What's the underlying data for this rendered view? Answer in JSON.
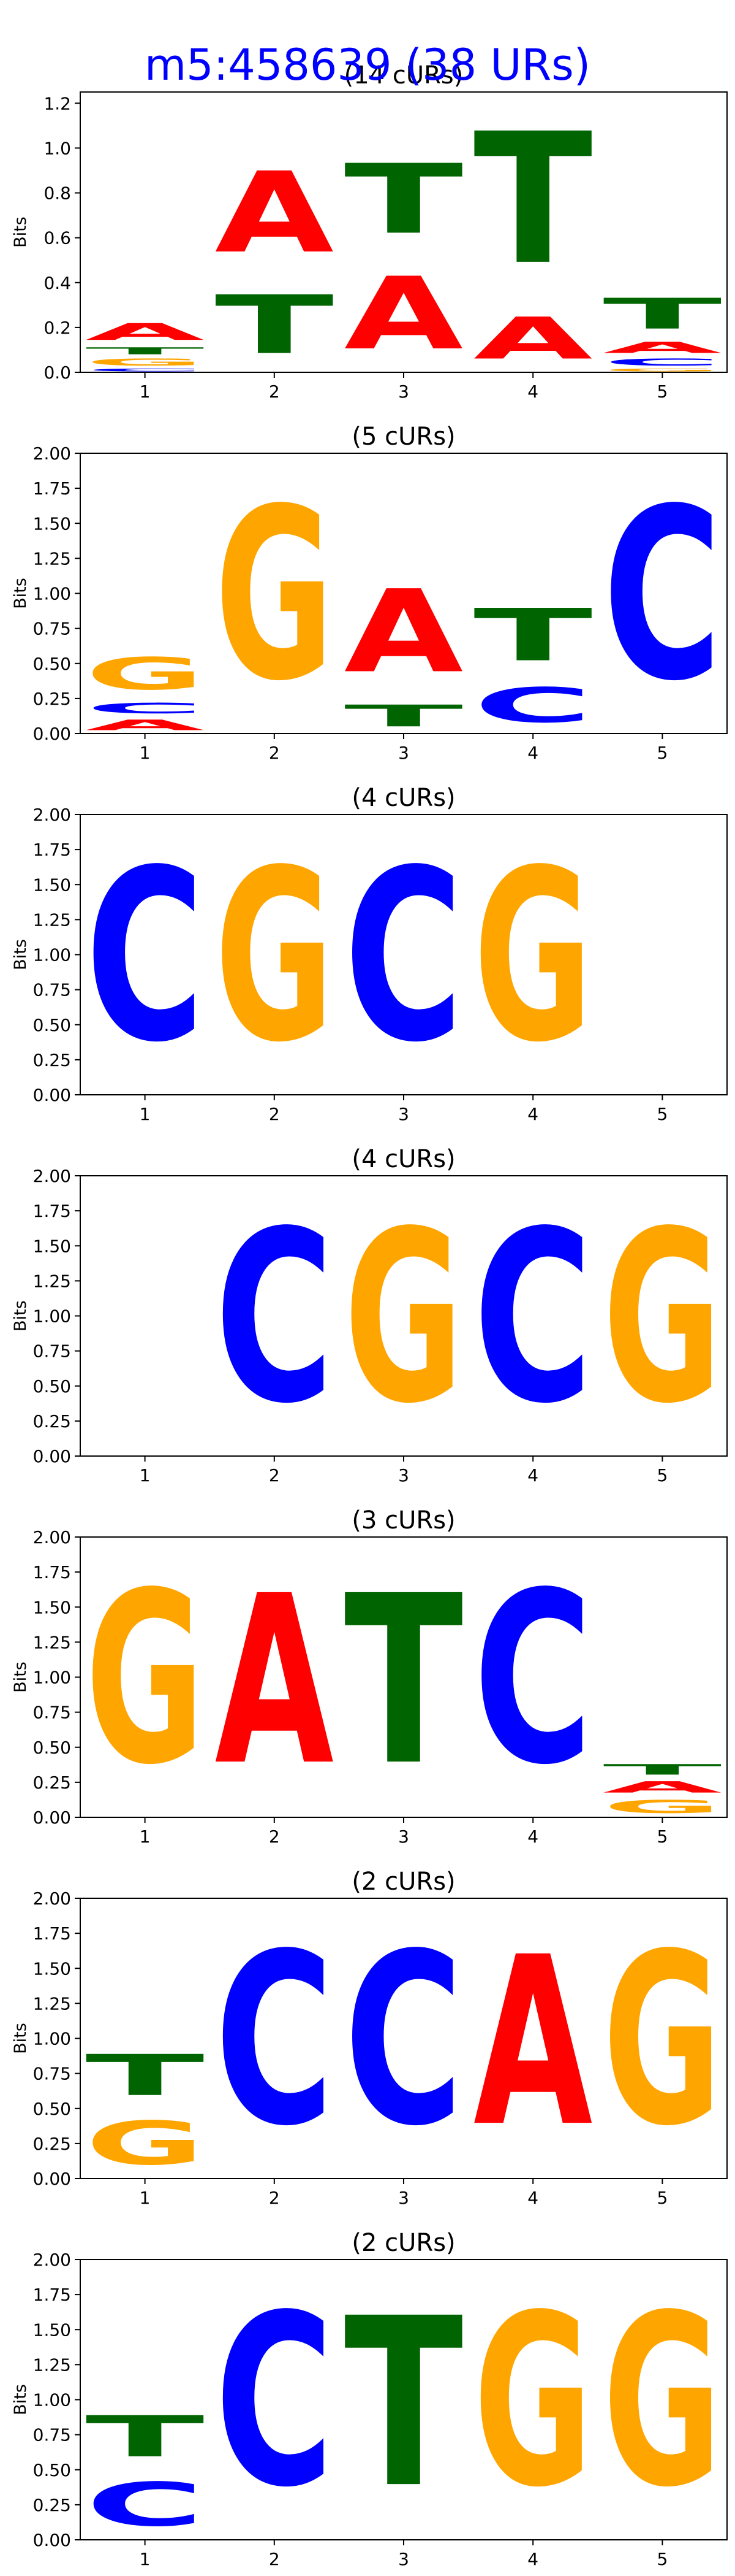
{
  "figure": {
    "title": "m5:458639 (38 URs)",
    "title_color": "#0000ff"
  },
  "colors": {
    "A": "#ff0000",
    "C": "#0000ff",
    "G": "#ffa500",
    "T": "#006400"
  },
  "chart_data": [
    {
      "type": "sequence-logo",
      "title": "(14 cURs)",
      "ylabel": "Bits",
      "ylim": [
        0,
        1.25
      ],
      "yticks": [
        "0.0",
        "0.2",
        "0.4",
        "0.6",
        "0.8",
        "1.0",
        "1.2"
      ],
      "ytick_values": [
        0,
        0.2,
        0.4,
        0.6,
        0.8,
        1.0,
        1.2
      ],
      "xticks": [
        "1",
        "2",
        "3",
        "4",
        "5"
      ],
      "positions": [
        [
          {
            "base": "C",
            "bits": 0.02
          },
          {
            "base": "G",
            "bits": 0.05
          },
          {
            "base": "T",
            "bits": 0.05
          },
          {
            "base": "A",
            "bits": 0.12
          }
        ],
        [
          {
            "base": "T",
            "bits": 0.42
          },
          {
            "base": "A",
            "bits": 0.58
          }
        ],
        [
          {
            "base": "A",
            "bits": 0.52
          },
          {
            "base": "T",
            "bits": 0.5
          }
        ],
        [
          {
            "base": "A",
            "bits": 0.3
          },
          {
            "base": "T",
            "bits": 0.94
          }
        ],
        [
          {
            "base": "G",
            "bits": 0.02
          },
          {
            "base": "C",
            "bits": 0.05
          },
          {
            "base": "A",
            "bits": 0.08
          },
          {
            "base": "T",
            "bits": 0.22
          }
        ]
      ]
    },
    {
      "type": "sequence-logo",
      "title": "(5 cURs)",
      "ylabel": "Bits",
      "ylim": [
        0,
        2.0
      ],
      "yticks": [
        "0.00",
        "0.25",
        "0.50",
        "0.75",
        "1.00",
        "1.25",
        "1.50",
        "1.75",
        "2.00"
      ],
      "ytick_values": [
        0,
        0.25,
        0.5,
        0.75,
        1.0,
        1.25,
        1.5,
        1.75,
        2.0
      ],
      "xticks": [
        "1",
        "2",
        "3",
        "4",
        "5"
      ],
      "positions": [
        [
          {
            "base": "A",
            "bits": 0.12
          },
          {
            "base": "C",
            "bits": 0.12
          },
          {
            "base": "G",
            "bits": 0.37
          }
        ],
        [
          {
            "base": "G",
            "bits": 1.97
          }
        ],
        [
          {
            "base": "T",
            "bits": 0.25
          },
          {
            "base": "A",
            "bits": 0.95
          }
        ],
        [
          {
            "base": "C",
            "bits": 0.4
          },
          {
            "base": "T",
            "bits": 0.6
          }
        ],
        [
          {
            "base": "C",
            "bits": 1.97
          }
        ]
      ]
    },
    {
      "type": "sequence-logo",
      "title": "(4 cURs)",
      "ylabel": "Bits",
      "ylim": [
        0,
        2.0
      ],
      "yticks": [
        "0.00",
        "0.25",
        "0.50",
        "0.75",
        "1.00",
        "1.25",
        "1.50",
        "1.75",
        "2.00"
      ],
      "ytick_values": [
        0,
        0.25,
        0.5,
        0.75,
        1.0,
        1.25,
        1.5,
        1.75,
        2.0
      ],
      "xticks": [
        "1",
        "2",
        "3",
        "4",
        "5"
      ],
      "positions": [
        [
          {
            "base": "C",
            "bits": 1.97
          }
        ],
        [
          {
            "base": "G",
            "bits": 1.97
          }
        ],
        [
          {
            "base": "C",
            "bits": 1.97
          }
        ],
        [
          {
            "base": "G",
            "bits": 1.97
          }
        ],
        []
      ]
    },
    {
      "type": "sequence-logo",
      "title": "(4 cURs)",
      "ylabel": "Bits",
      "ylim": [
        0,
        2.0
      ],
      "yticks": [
        "0.00",
        "0.25",
        "0.50",
        "0.75",
        "1.00",
        "1.25",
        "1.50",
        "1.75",
        "2.00"
      ],
      "ytick_values": [
        0,
        0.25,
        0.5,
        0.75,
        1.0,
        1.25,
        1.5,
        1.75,
        2.0
      ],
      "xticks": [
        "1",
        "2",
        "3",
        "4",
        "5"
      ],
      "positions": [
        [],
        [
          {
            "base": "C",
            "bits": 1.97
          }
        ],
        [
          {
            "base": "G",
            "bits": 1.97
          }
        ],
        [
          {
            "base": "C",
            "bits": 1.97
          }
        ],
        [
          {
            "base": "G",
            "bits": 1.97
          }
        ]
      ]
    },
    {
      "type": "sequence-logo",
      "title": "(3 cURs)",
      "ylabel": "Bits",
      "ylim": [
        0,
        2.0
      ],
      "yticks": [
        "0.00",
        "0.25",
        "0.50",
        "0.75",
        "1.00",
        "1.25",
        "1.50",
        "1.75",
        "2.00"
      ],
      "ytick_values": [
        0,
        0.25,
        0.5,
        0.75,
        1.0,
        1.25,
        1.5,
        1.75,
        2.0
      ],
      "xticks": [
        "1",
        "2",
        "3",
        "4",
        "5"
      ],
      "positions": [
        [
          {
            "base": "G",
            "bits": 1.97
          }
        ],
        [
          {
            "base": "A",
            "bits": 1.94
          }
        ],
        [
          {
            "base": "T",
            "bits": 1.94
          }
        ],
        [
          {
            "base": "C",
            "bits": 1.97
          }
        ],
        [
          {
            "base": "G",
            "bits": 0.15
          },
          {
            "base": "A",
            "bits": 0.13
          },
          {
            "base": "T",
            "bits": 0.12
          }
        ]
      ]
    },
    {
      "type": "sequence-logo",
      "title": "(2 cURs)",
      "ylabel": "Bits",
      "ylim": [
        0,
        2.0
      ],
      "yticks": [
        "0.00",
        "0.25",
        "0.50",
        "0.75",
        "1.00",
        "1.25",
        "1.50",
        "1.75",
        "2.00"
      ],
      "ytick_values": [
        0,
        0.25,
        0.5,
        0.75,
        1.0,
        1.25,
        1.5,
        1.75,
        2.0
      ],
      "xticks": [
        "1",
        "2",
        "3",
        "4",
        "5"
      ],
      "positions": [
        [
          {
            "base": "G",
            "bits": 0.5
          },
          {
            "base": "T",
            "bits": 0.47
          }
        ],
        [
          {
            "base": "C",
            "bits": 1.97
          }
        ],
        [
          {
            "base": "C",
            "bits": 1.97
          }
        ],
        [
          {
            "base": "A",
            "bits": 1.94
          }
        ],
        [
          {
            "base": "G",
            "bits": 1.97
          }
        ]
      ]
    },
    {
      "type": "sequence-logo",
      "title": "(2 cURs)",
      "ylabel": "Bits",
      "ylim": [
        0,
        2.0
      ],
      "yticks": [
        "0.00",
        "0.25",
        "0.50",
        "0.75",
        "1.00",
        "1.25",
        "1.50",
        "1.75",
        "2.00"
      ],
      "ytick_values": [
        0,
        0.25,
        0.5,
        0.75,
        1.0,
        1.25,
        1.5,
        1.75,
        2.0
      ],
      "xticks": [
        "1",
        "2",
        "3",
        "4",
        "5"
      ],
      "positions": [
        [
          {
            "base": "C",
            "bits": 0.5
          },
          {
            "base": "T",
            "bits": 0.47
          }
        ],
        [
          {
            "base": "C",
            "bits": 1.97
          }
        ],
        [
          {
            "base": "T",
            "bits": 1.94
          }
        ],
        [
          {
            "base": "G",
            "bits": 1.97
          }
        ],
        [
          {
            "base": "G",
            "bits": 1.97
          }
        ]
      ]
    }
  ]
}
